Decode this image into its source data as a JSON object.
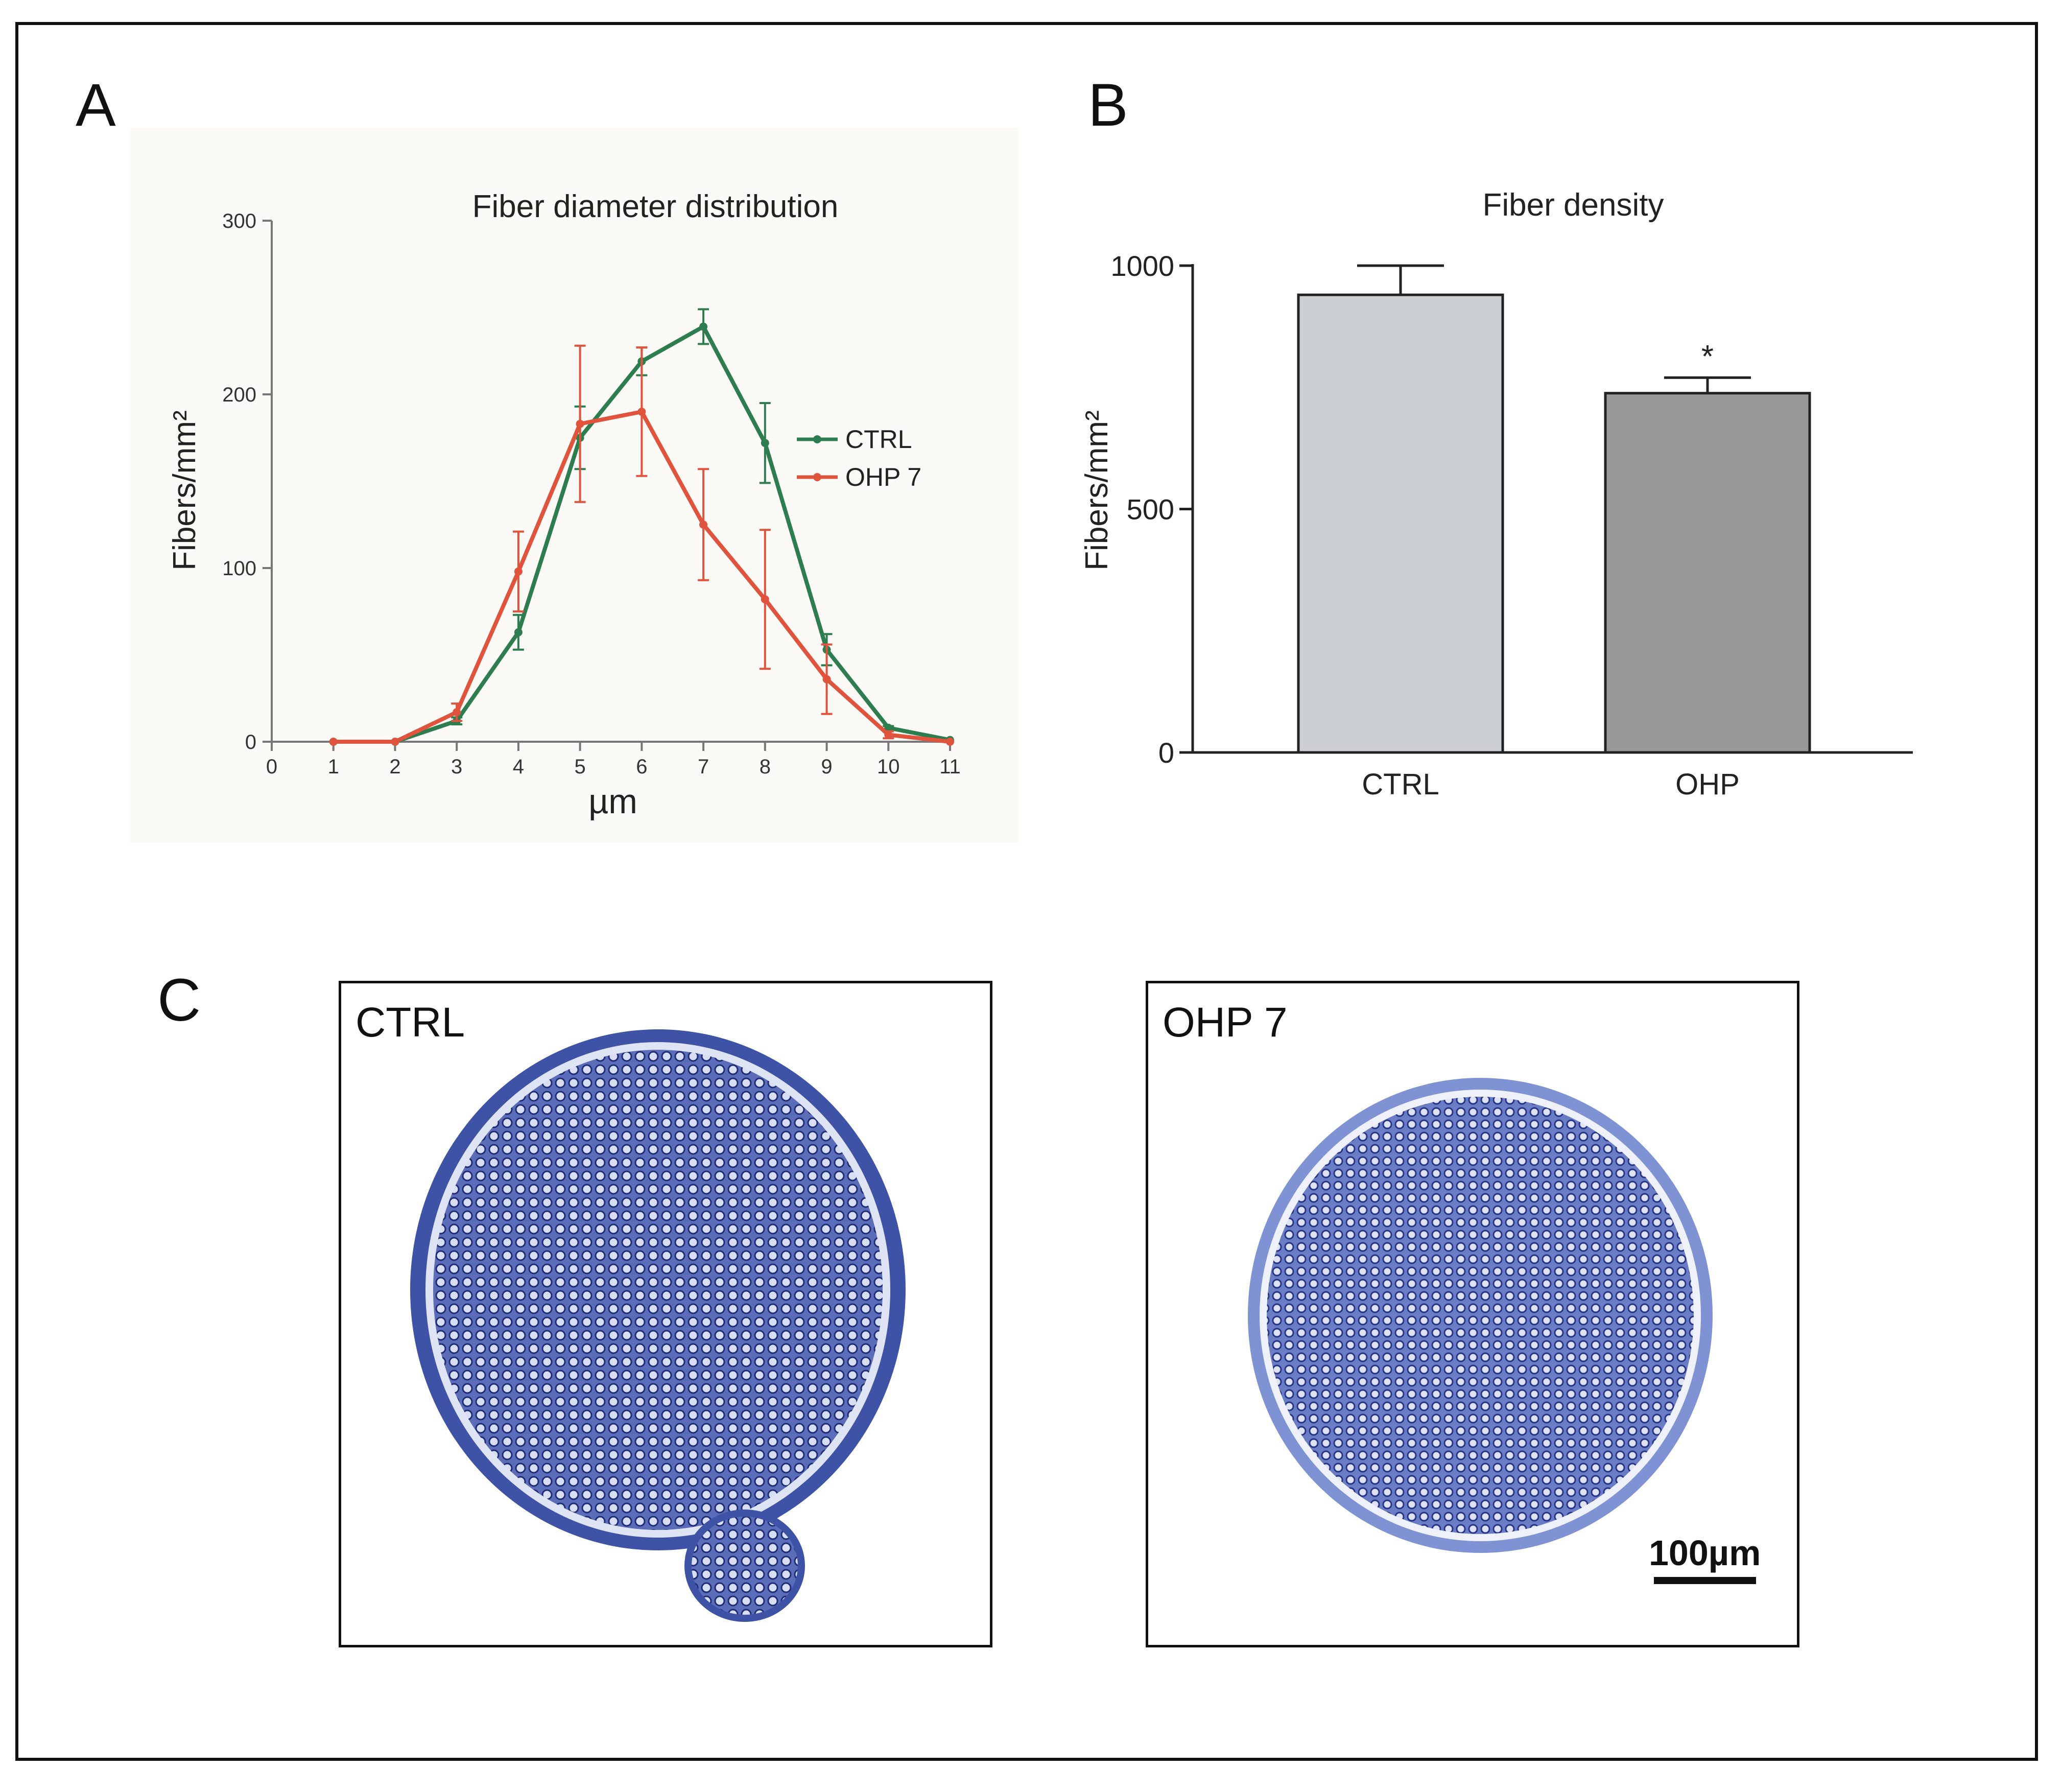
{
  "panels": {
    "a": "A",
    "b": "B",
    "c": "C"
  },
  "chart_data": [
    {
      "type": "line",
      "title": "Fiber diameter distribution",
      "xlabel": "µm",
      "ylabel": "Fibers/mm²",
      "xlim": [
        0,
        11
      ],
      "ylim": [
        0,
        300
      ],
      "xticks": [
        0,
        1,
        2,
        3,
        4,
        5,
        6,
        7,
        8,
        9,
        10,
        11
      ],
      "yticks": [
        0,
        100,
        200,
        300
      ],
      "legend_position": "right",
      "x": [
        1,
        2,
        3,
        4,
        5,
        6,
        7,
        8,
        9,
        10,
        11
      ],
      "series": [
        {
          "name": "CTRL",
          "color": "#2e7d4f",
          "values": [
            0,
            0,
            12,
            63,
            175,
            219,
            239,
            172,
            53,
            8,
            1
          ],
          "errors": [
            0,
            0,
            2,
            10,
            18,
            8,
            10,
            23,
            9,
            1,
            0
          ]
        },
        {
          "name": "OHP 7",
          "color": "#e0533c",
          "values": [
            0,
            0,
            17,
            98,
            183,
            190,
            125,
            82,
            36,
            4,
            0
          ],
          "errors": [
            0,
            0,
            5,
            23,
            45,
            37,
            32,
            40,
            20,
            2,
            0
          ]
        }
      ]
    },
    {
      "type": "bar",
      "title": "Fiber density",
      "ylabel": "Fibers/mm²",
      "ylim": [
        0,
        1000
      ],
      "yticks": [
        0,
        500,
        1000
      ],
      "categories": [
        "CTRL",
        "OHP"
      ],
      "values": [
        940,
        738
      ],
      "errors": [
        60,
        32
      ],
      "colors": [
        "#ccd0d3",
        "#98979a"
      ],
      "annotations": [
        {
          "category": "OHP",
          "text": "*"
        }
      ]
    }
  ],
  "micrographs": {
    "ctrl_label": "CTRL",
    "ohp_label": "OHP 7",
    "scalebar": "100µm"
  }
}
